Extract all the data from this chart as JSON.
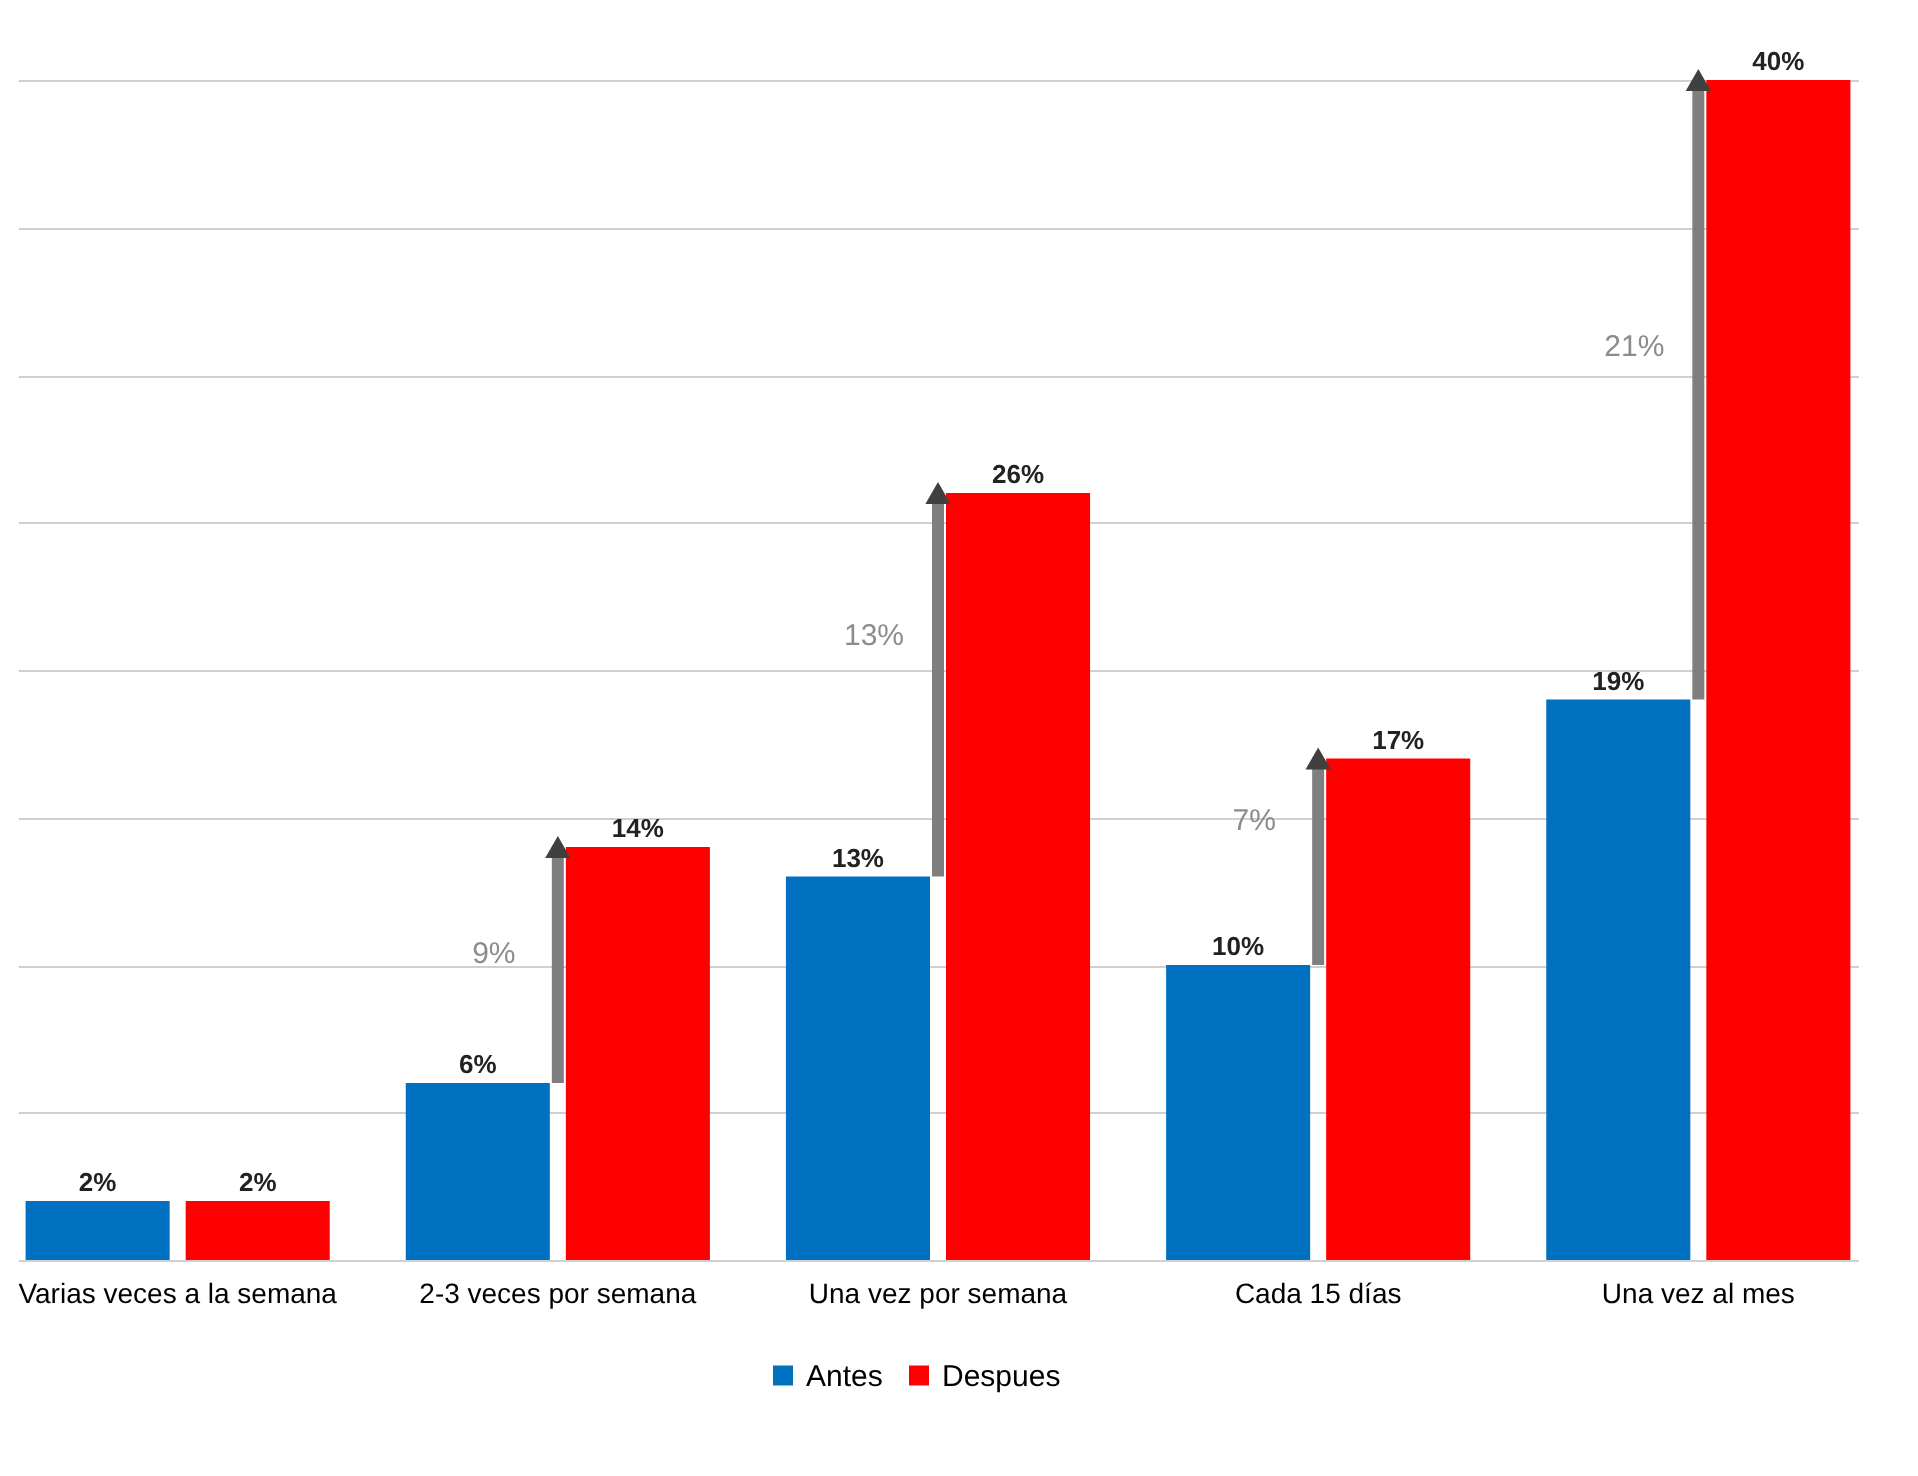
{
  "chart_data": {
    "type": "bar",
    "categories": [
      "Varias veces a la semana",
      "2-3 veces por semana",
      "Una vez por semana",
      "Cada 15 días",
      "Una vez al mes"
    ],
    "series": [
      {
        "name": "Antes",
        "color": "#0070c0",
        "values": [
          2,
          6,
          13,
          10,
          19
        ],
        "value_labels": [
          "2%",
          "6%",
          "13%",
          "10%",
          "19%"
        ]
      },
      {
        "name": "Despues",
        "color": "#ff0000",
        "values": [
          2,
          14,
          26,
          17,
          40
        ],
        "value_labels": [
          "2%",
          "14%",
          "26%",
          "17%",
          "40%"
        ]
      }
    ],
    "ylim": [
      0,
      40
    ],
    "yticks": [
      {
        "value": 0,
        "label": null
      },
      {
        "value": 5,
        "label": null
      },
      {
        "value": 10,
        "label": null
      },
      {
        "value": 15,
        "label": null
      },
      {
        "value": 20,
        "label": null
      },
      {
        "value": 25,
        "label": null
      },
      {
        "value": 30,
        "label": null
      },
      {
        "value": 35,
        "label": null
      },
      {
        "value": 40,
        "label": null
      }
    ],
    "tick_labels": "x",
    "grid": "y",
    "legend": "bottom",
    "annotations": [
      {
        "text": "9%",
        "x": "2-3 veces por semana",
        "y": 10.4
      },
      {
        "text": "13%",
        "x": "Una vez por semana",
        "y": 21.2
      },
      {
        "text": "7%",
        "x": "Cada 15 días",
        "y": 14.9
      },
      {
        "text": "21%",
        "x": "Una vez al mes",
        "y": 31
      }
    ]
  }
}
